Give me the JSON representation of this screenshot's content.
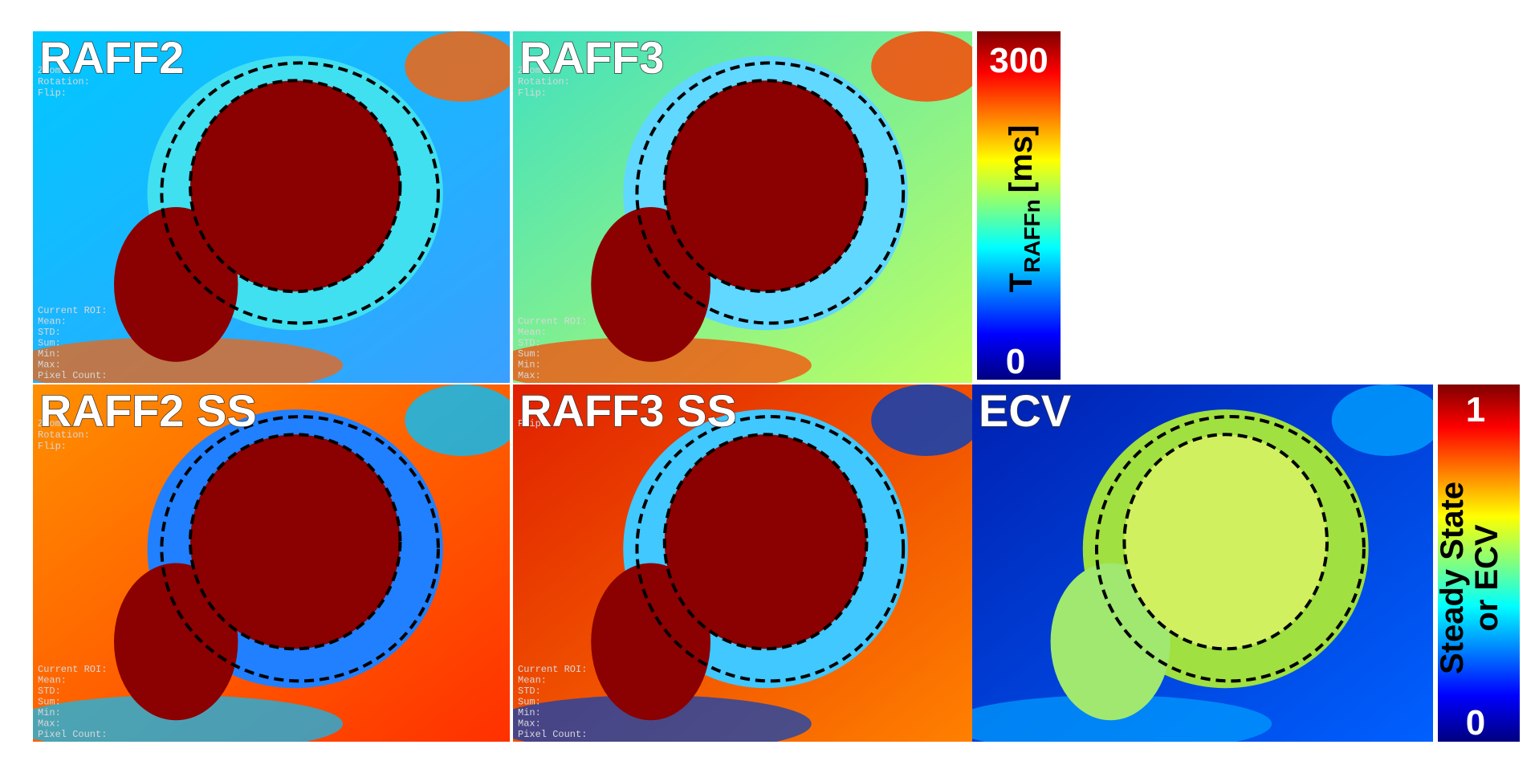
{
  "panels": [
    {
      "label": "RAFF2",
      "overlay_top": [
        "Zoom:",
        "Rotation:",
        "Flip:"
      ],
      "overlay_bottom": [
        "Current ROI:",
        "Mean:",
        "STD:",
        "Sum:",
        "Min:",
        "Max:",
        "Pixel Count:"
      ]
    },
    {
      "label": "RAFF3",
      "overlay_top": [
        "Zoom:",
        "Rotation:",
        "Flip:"
      ],
      "overlay_bottom": [
        "Current ROI:",
        "Mean:",
        "STD:",
        "Sum:",
        "Min:",
        "Max:"
      ]
    },
    {
      "label": "RAFF2 SS",
      "overlay_top": [
        "Zoom:",
        "Rotation:",
        "Flip:"
      ],
      "overlay_bottom": [
        "Current ROI:",
        "Mean:",
        "STD:",
        "Sum:",
        "Min:",
        "Max:",
        "Pixel Count:"
      ]
    },
    {
      "label": "RAFF3 SS",
      "overlay_top": [
        "Flip:"
      ],
      "overlay_bottom": [
        "Current ROI:",
        "Mean:",
        "STD:",
        "Sum:",
        "Min:",
        "Max:",
        "Pixel Count:"
      ]
    },
    {
      "label": "ECV",
      "overlay_top": [],
      "overlay_bottom": []
    }
  ],
  "colorbars": [
    {
      "max": "300",
      "min": "0",
      "title": "T",
      "title_sub": "RAFFn",
      "title_unit": "[ms]"
    },
    {
      "max": "1",
      "min": "0",
      "title_line1": "Steady State",
      "title_line2": "or ECV"
    }
  ]
}
